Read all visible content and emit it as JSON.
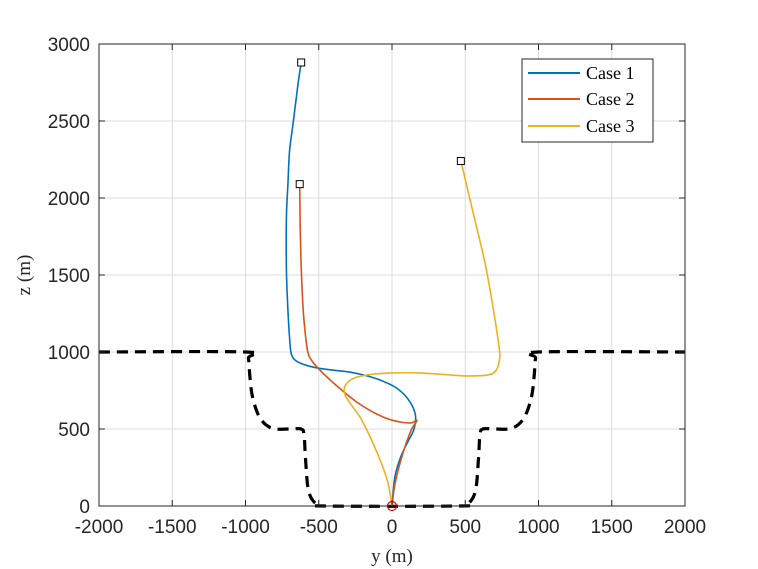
{
  "chart_data": {
    "type": "line",
    "xlabel": "y (m)",
    "ylabel": "z (m)",
    "xlim": [
      -2000,
      2000
    ],
    "ylim": [
      0,
      3000
    ],
    "xticks": [
      -2000,
      -1500,
      -1000,
      -500,
      0,
      500,
      1000,
      1500,
      2000
    ],
    "yticks": [
      0,
      500,
      1000,
      1500,
      2000,
      2500,
      3000
    ],
    "grid": true,
    "legend_location": "top-right",
    "boundary": {
      "style": "black dashed",
      "color": "#000000",
      "points": [
        [
          -2000,
          1000
        ],
        [
          -1000,
          1000
        ],
        [
          -980,
          960
        ],
        [
          -970,
          840
        ],
        [
          -950,
          700
        ],
        [
          -900,
          570
        ],
        [
          -820,
          505
        ],
        [
          -700,
          500
        ],
        [
          -620,
          500
        ],
        [
          -600,
          460
        ],
        [
          -590,
          300
        ],
        [
          -570,
          100
        ],
        [
          -520,
          15
        ],
        [
          -450,
          0
        ],
        [
          450,
          0
        ],
        [
          520,
          15
        ],
        [
          570,
          100
        ],
        [
          590,
          300
        ],
        [
          600,
          460
        ],
        [
          620,
          500
        ],
        [
          700,
          500
        ],
        [
          820,
          505
        ],
        [
          900,
          570
        ],
        [
          950,
          700
        ],
        [
          970,
          840
        ],
        [
          980,
          960
        ],
        [
          1000,
          1000
        ],
        [
          2000,
          1000
        ]
      ]
    },
    "series": [
      {
        "name": "Case 1",
        "color": "#0072BD",
        "points": [
          [
            -620,
            2880
          ],
          [
            -640,
            2750
          ],
          [
            -660,
            2600
          ],
          [
            -680,
            2450
          ],
          [
            -700,
            2300
          ],
          [
            -710,
            2100
          ],
          [
            -720,
            1900
          ],
          [
            -722,
            1700
          ],
          [
            -720,
            1500
          ],
          [
            -712,
            1300
          ],
          [
            -700,
            1100
          ],
          [
            -690,
            1000
          ],
          [
            -670,
            955
          ],
          [
            -620,
            925
          ],
          [
            -520,
            898
          ],
          [
            -400,
            882
          ],
          [
            -280,
            868
          ],
          [
            -170,
            845
          ],
          [
            -60,
            810
          ],
          [
            40,
            760
          ],
          [
            120,
            680
          ],
          [
            160,
            590
          ],
          [
            150,
            500
          ],
          [
            110,
            420
          ],
          [
            60,
            320
          ],
          [
            20,
            190
          ],
          [
            0,
            0
          ]
        ]
      },
      {
        "name": "Case 2",
        "color": "#D95319",
        "points": [
          [
            -630,
            2090
          ],
          [
            -628,
            1900
          ],
          [
            -624,
            1700
          ],
          [
            -618,
            1500
          ],
          [
            -608,
            1300
          ],
          [
            -595,
            1150
          ],
          [
            -575,
            1000
          ],
          [
            -545,
            940
          ],
          [
            -500,
            890
          ],
          [
            -430,
            825
          ],
          [
            -340,
            750
          ],
          [
            -240,
            675
          ],
          [
            -140,
            615
          ],
          [
            -40,
            570
          ],
          [
            60,
            545
          ],
          [
            130,
            540
          ],
          [
            170,
            555
          ],
          [
            130,
            490
          ],
          [
            70,
            330
          ],
          [
            20,
            140
          ],
          [
            0,
            0
          ]
        ]
      },
      {
        "name": "Case 3",
        "color": "#EDB120",
        "points": [
          [
            470,
            2240
          ],
          [
            530,
            2000
          ],
          [
            580,
            1800
          ],
          [
            630,
            1600
          ],
          [
            670,
            1400
          ],
          [
            705,
            1200
          ],
          [
            730,
            1040
          ],
          [
            735,
            960
          ],
          [
            710,
            880
          ],
          [
            650,
            850
          ],
          [
            500,
            845
          ],
          [
            340,
            855
          ],
          [
            180,
            864
          ],
          [
            20,
            864
          ],
          [
            -140,
            855
          ],
          [
            -260,
            830
          ],
          [
            -320,
            780
          ],
          [
            -320,
            720
          ],
          [
            -280,
            660
          ],
          [
            -220,
            580
          ],
          [
            -160,
            470
          ],
          [
            -90,
            320
          ],
          [
            -30,
            160
          ],
          [
            0,
            0
          ]
        ]
      }
    ],
    "start_markers": [
      {
        "series": "Case 1",
        "x": -620,
        "y": 2880
      },
      {
        "series": "Case 2",
        "x": -630,
        "y": 2090
      },
      {
        "series": "Case 3",
        "x": 470,
        "y": 2240
      }
    ],
    "end_marker": {
      "x": 0,
      "y": 0,
      "color": "#FF0000"
    }
  }
}
